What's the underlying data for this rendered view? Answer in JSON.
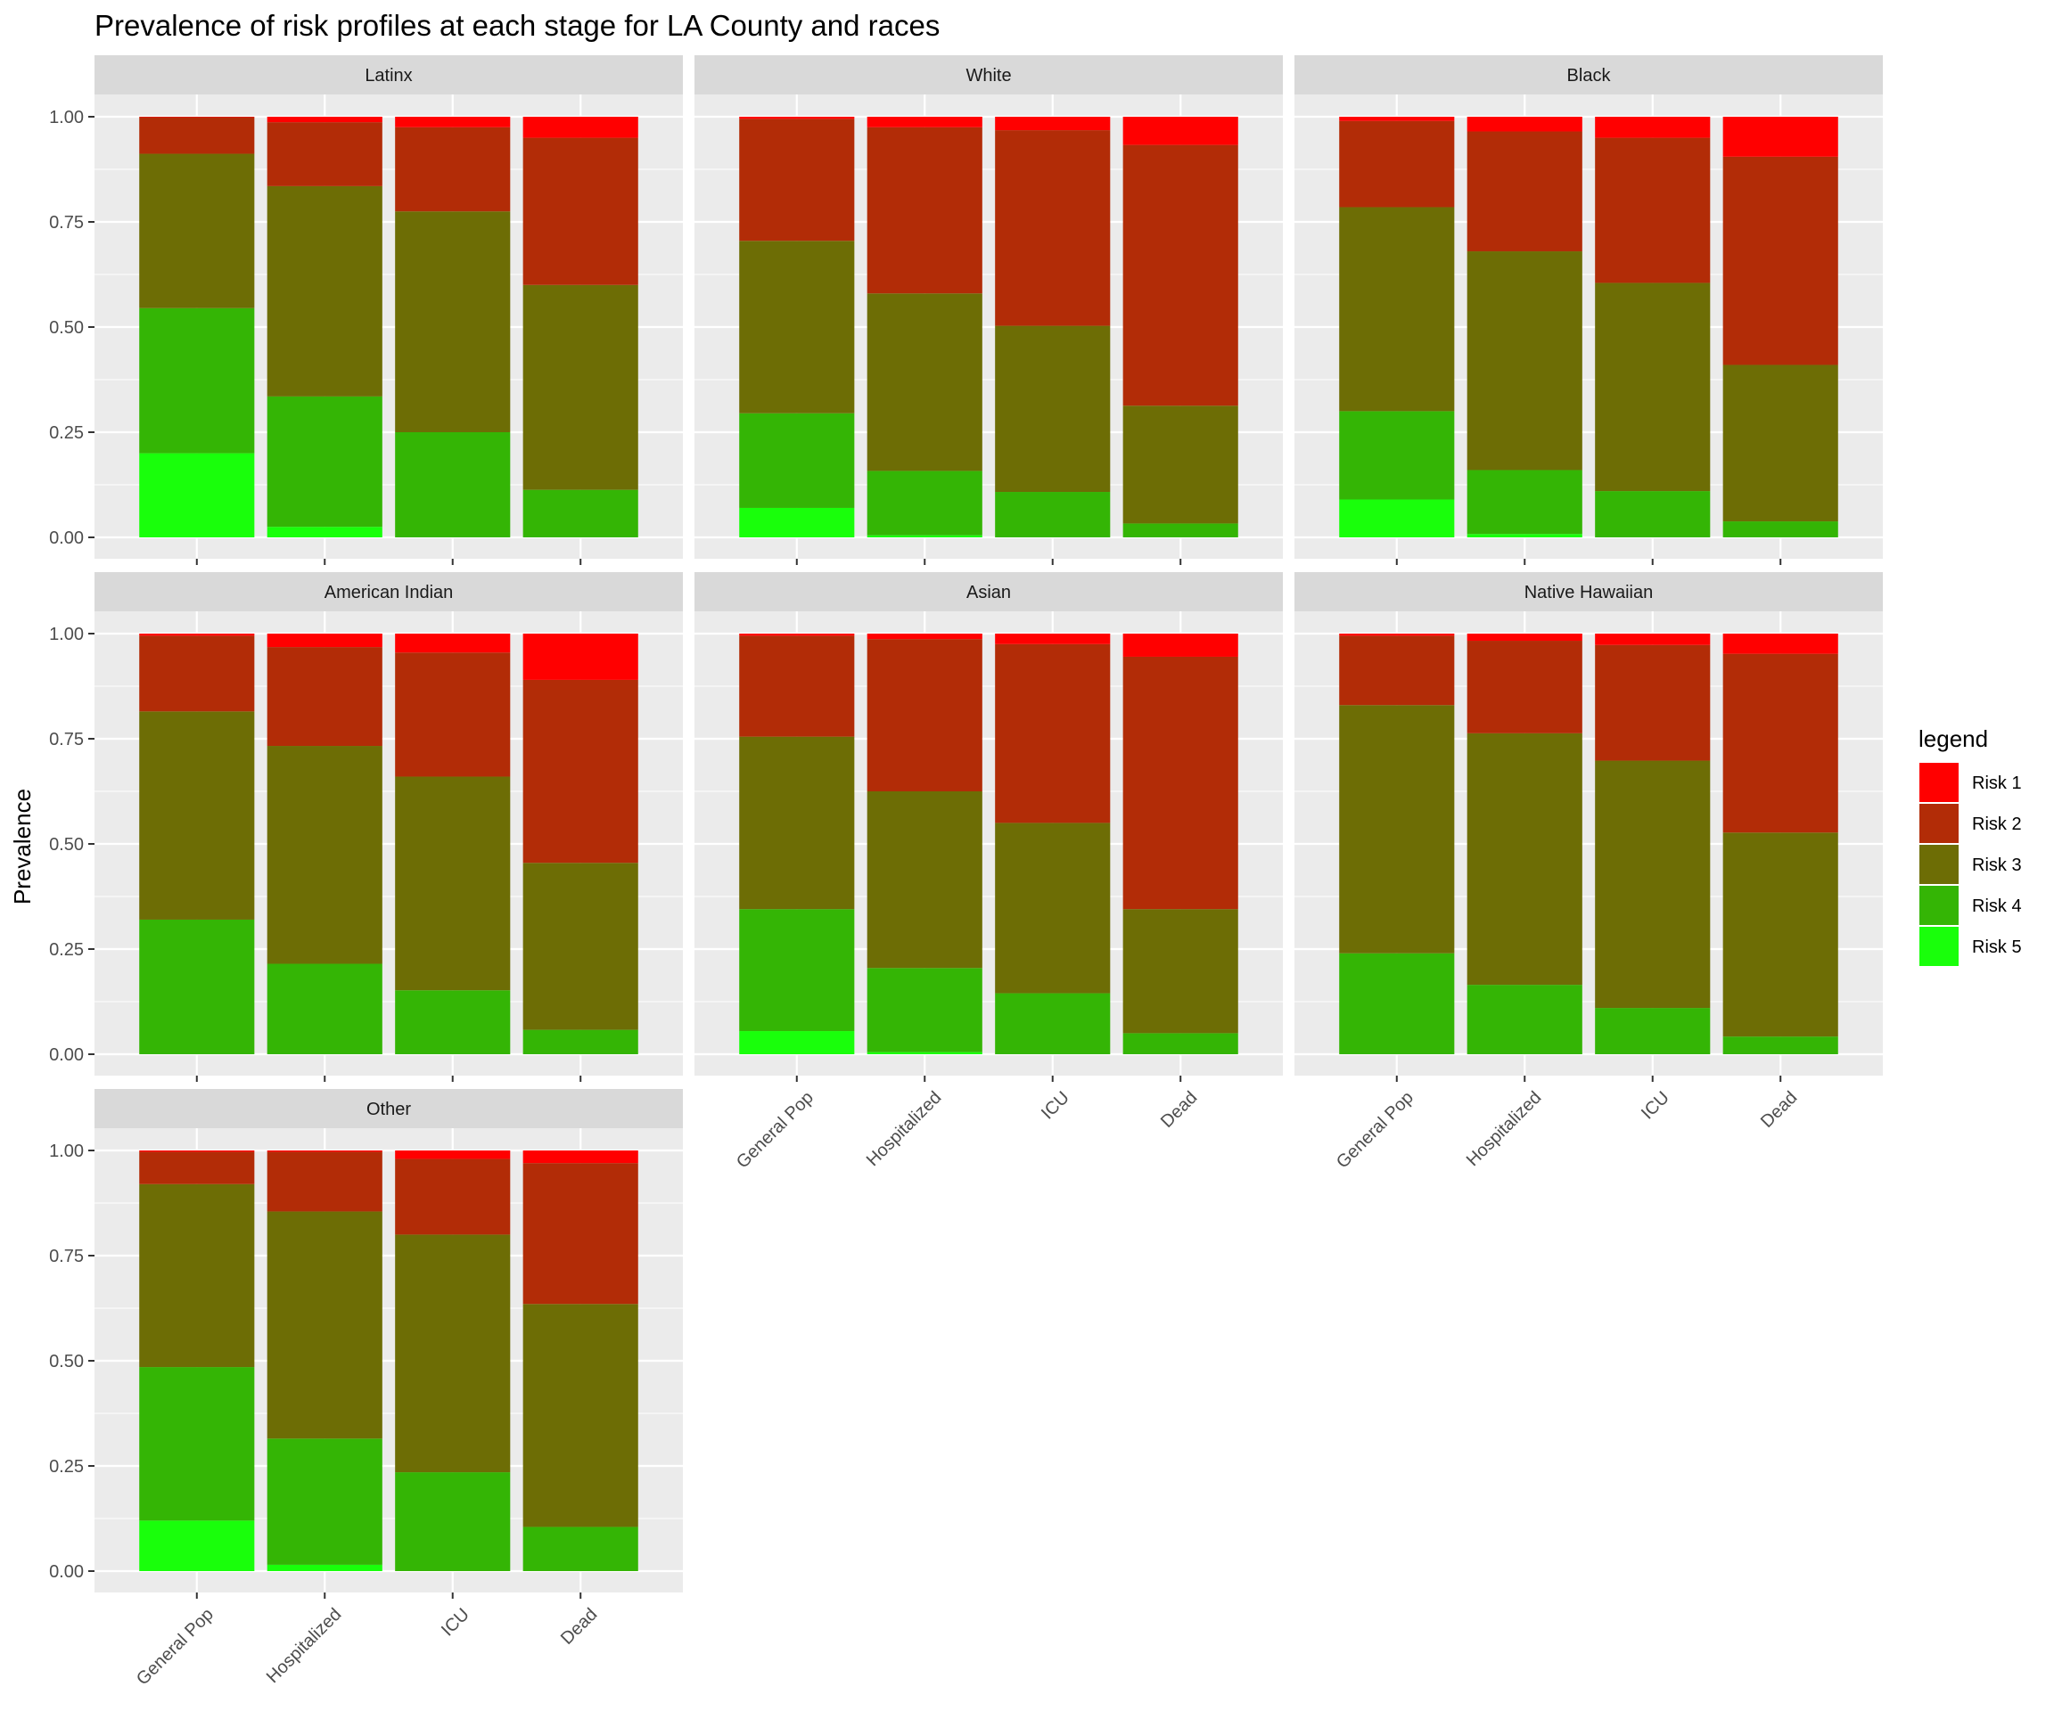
{
  "chart_data": {
    "type": "bar",
    "subtype": "stacked-facets",
    "title": "Prevalence of risk profiles at each stage for LA County and races",
    "xlabel": "",
    "ylabel": "Prevalence",
    "ylim": [
      0,
      1
    ],
    "yticks": [
      "0.00",
      "0.25",
      "0.50",
      "0.75",
      "1.00"
    ],
    "categories": [
      "General Pop",
      "Hospitalized",
      "ICU",
      "Dead"
    ],
    "legend": {
      "title": "legend",
      "position": "right",
      "entries": [
        "Risk 1",
        "Risk 2",
        "Risk 3",
        "Risk 4",
        "Risk 5"
      ]
    },
    "colors": {
      "Risk 1": "#ff0000",
      "Risk 2": "#b22c07",
      "Risk 3": "#6d6d05",
      "Risk 4": "#34b505",
      "Risk 5": "#19ff0b",
      "panel_bg": "#ebebeb",
      "strip_bg": "#d9d9d9",
      "grid": "#ffffff"
    },
    "grid": true,
    "stack_order_bottom_to_top": [
      "Risk 5",
      "Risk 4",
      "Risk 3",
      "Risk 2",
      "Risk 1"
    ],
    "facets": [
      {
        "name": "Latinx",
        "series": [
          {
            "name": "Risk 5",
            "values": [
              0.2,
              0.025,
              0.0,
              0.0
            ]
          },
          {
            "name": "Risk 4",
            "values": [
              0.345,
              0.31,
              0.25,
              0.113
            ]
          },
          {
            "name": "Risk 3",
            "values": [
              0.367,
              0.5,
              0.525,
              0.487
            ]
          },
          {
            "name": "Risk 2",
            "values": [
              0.087,
              0.152,
              0.2,
              0.35
            ]
          },
          {
            "name": "Risk 1",
            "values": [
              0.001,
              0.013,
              0.025,
              0.05
            ]
          }
        ]
      },
      {
        "name": "White",
        "series": [
          {
            "name": "Risk 5",
            "values": [
              0.07,
              0.005,
              0.0,
              0.0
            ]
          },
          {
            "name": "Risk 4",
            "values": [
              0.225,
              0.153,
              0.108,
              0.033
            ]
          },
          {
            "name": "Risk 3",
            "values": [
              0.41,
              0.422,
              0.395,
              0.28
            ]
          },
          {
            "name": "Risk 2",
            "values": [
              0.29,
              0.395,
              0.465,
              0.62
            ]
          },
          {
            "name": "Risk 1",
            "values": [
              0.005,
              0.025,
              0.032,
              0.067
            ]
          }
        ]
      },
      {
        "name": "Black",
        "series": [
          {
            "name": "Risk 5",
            "values": [
              0.09,
              0.008,
              0.0,
              0.0
            ]
          },
          {
            "name": "Risk 4",
            "values": [
              0.21,
              0.152,
              0.11,
              0.038
            ]
          },
          {
            "name": "Risk 3",
            "values": [
              0.485,
              0.52,
              0.495,
              0.372
            ]
          },
          {
            "name": "Risk 2",
            "values": [
              0.205,
              0.285,
              0.345,
              0.495
            ]
          },
          {
            "name": "Risk 1",
            "values": [
              0.01,
              0.035,
              0.05,
              0.095
            ]
          }
        ]
      },
      {
        "name": "American Indian",
        "series": [
          {
            "name": "Risk 5",
            "values": [
              0.0,
              0.0,
              0.0,
              0.0
            ]
          },
          {
            "name": "Risk 4",
            "values": [
              0.32,
              0.215,
              0.152,
              0.058
            ]
          },
          {
            "name": "Risk 3",
            "values": [
              0.495,
              0.518,
              0.508,
              0.397
            ]
          },
          {
            "name": "Risk 2",
            "values": [
              0.18,
              0.235,
              0.295,
              0.435
            ]
          },
          {
            "name": "Risk 1",
            "values": [
              0.005,
              0.032,
              0.045,
              0.11
            ]
          }
        ]
      },
      {
        "name": "Asian",
        "series": [
          {
            "name": "Risk 5",
            "values": [
              0.055,
              0.005,
              0.0,
              0.0
            ]
          },
          {
            "name": "Risk 4",
            "values": [
              0.29,
              0.2,
              0.145,
              0.05
            ]
          },
          {
            "name": "Risk 3",
            "values": [
              0.41,
              0.42,
              0.405,
              0.295
            ]
          },
          {
            "name": "Risk 2",
            "values": [
              0.24,
              0.362,
              0.425,
              0.6
            ]
          },
          {
            "name": "Risk 1",
            "values": [
              0.005,
              0.013,
              0.025,
              0.055
            ]
          }
        ]
      },
      {
        "name": "Native Hawaiian",
        "series": [
          {
            "name": "Risk 5",
            "values": [
              0.0,
              0.0,
              0.0,
              0.0
            ]
          },
          {
            "name": "Risk 4",
            "values": [
              0.24,
              0.165,
              0.11,
              0.042
            ]
          },
          {
            "name": "Risk 3",
            "values": [
              0.59,
              0.598,
              0.588,
              0.485
            ]
          },
          {
            "name": "Risk 2",
            "values": [
              0.165,
              0.22,
              0.275,
              0.425
            ]
          },
          {
            "name": "Risk 1",
            "values": [
              0.005,
              0.017,
              0.027,
              0.048
            ]
          }
        ]
      },
      {
        "name": "Other",
        "series": [
          {
            "name": "Risk 5",
            "values": [
              0.12,
              0.015,
              0.0,
              0.0
            ]
          },
          {
            "name": "Risk 4",
            "values": [
              0.365,
              0.3,
              0.235,
              0.105
            ]
          },
          {
            "name": "Risk 3",
            "values": [
              0.435,
              0.54,
              0.565,
              0.53
            ]
          },
          {
            "name": "Risk 2",
            "values": [
              0.077,
              0.142,
              0.18,
              0.335
            ]
          },
          {
            "name": "Risk 1",
            "values": [
              0.003,
              0.003,
              0.02,
              0.03
            ]
          }
        ]
      }
    ]
  }
}
